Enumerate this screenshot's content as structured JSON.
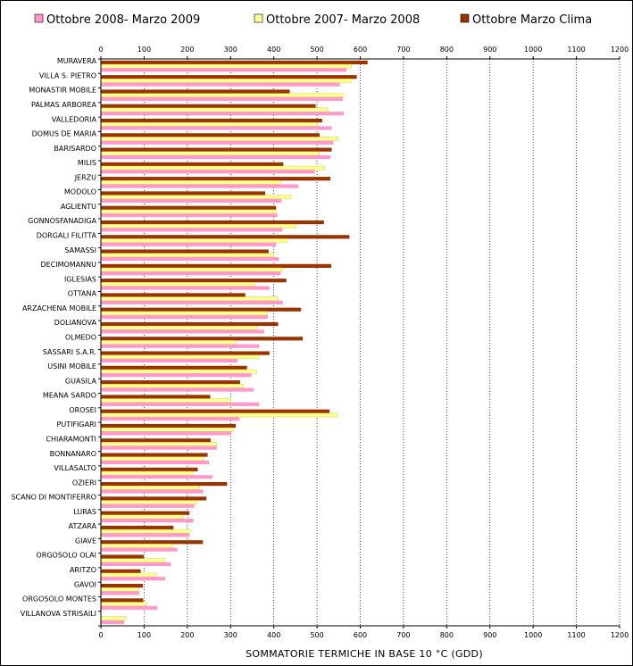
{
  "chart_data": {
    "type": "bar",
    "orientation": "horizontal",
    "xlabel": "SOMMATORIE TERMICHE IN BASE 10 °C (GDD)",
    "xlim": [
      0,
      1200
    ],
    "xticks": [
      0,
      100,
      200,
      300,
      400,
      500,
      600,
      700,
      800,
      900,
      1000,
      1100,
      1200
    ],
    "grid": "vertical dotted",
    "legend_position": "top",
    "categories": [
      "MURAVERA",
      "VILLA S. PIETRO",
      "MONASTIR MOBILE",
      "PALMAS ARBOREA",
      "VALLEDORIA",
      "DOMUS DE MARIA",
      "BARISARDO",
      "MILIS",
      "JERZU",
      "MODOLO",
      "AGLIENTU",
      "GONNOSFANADIGA",
      "DORGALI FILITTA",
      "SAMASSI",
      "DECIMOMANNU",
      "IGLESIAS",
      "OTTANA",
      "ARZACHENA MOBILE",
      "DOLIANOVA",
      "OLMEDO",
      "SASSARI S.A.R.",
      "USINI MOBILE",
      "GUASILA",
      "MEANA SARDO",
      "OROSEI",
      "PUTIFIGARI",
      "CHIARAMONTI",
      "BONNANARO",
      "VILLASALTO",
      "OZIERI",
      "SCANO DI MONTIFERRO",
      "LURAS",
      "ATZARA",
      "GIAVE",
      "ORGOSOLO OLAI",
      "ARITZO",
      "GAVOI",
      "ORGOSOLO MONTES",
      "VILLANOVA STRISAILI"
    ],
    "series": [
      {
        "name": "Ottobre Marzo Clima",
        "color": "#993300",
        "values": [
          617,
          592,
          437,
          497,
          512,
          506,
          534,
          422,
          531,
          380,
          405,
          516,
          575,
          388,
          533,
          429,
          334,
          463,
          410,
          467,
          390,
          338,
          322,
          253,
          529,
          312,
          254,
          247,
          224,
          292,
          244,
          205,
          168,
          236,
          99,
          92,
          97,
          98,
          null
        ]
      },
      {
        "name": "Ottobre 2007- Marzo 2008",
        "color": "#ffff99",
        "values": [
          580,
          580,
          562,
          526,
          500,
          549,
          505,
          518,
          416,
          440,
          405,
          452,
          432,
          400,
          420,
          357,
          410,
          385,
          360,
          312,
          365,
          360,
          330,
          300,
          548,
          307,
          268,
          238,
          213,
          228,
          223,
          190,
          207,
          165,
          148,
          128,
          87,
          105,
          57
        ]
      },
      {
        "name": "Ottobre 2008- Marzo 2009",
        "color": "#ff99cc",
        "values": [
          568,
          553,
          560,
          562,
          534,
          538,
          531,
          495,
          457,
          418,
          408,
          420,
          405,
          412,
          416,
          390,
          421,
          386,
          378,
          366,
          316,
          348,
          353,
          366,
          321,
          302,
          268,
          250,
          258,
          237,
          216,
          214,
          205,
          177,
          162,
          149,
          89,
          131,
          54
        ]
      }
    ]
  }
}
